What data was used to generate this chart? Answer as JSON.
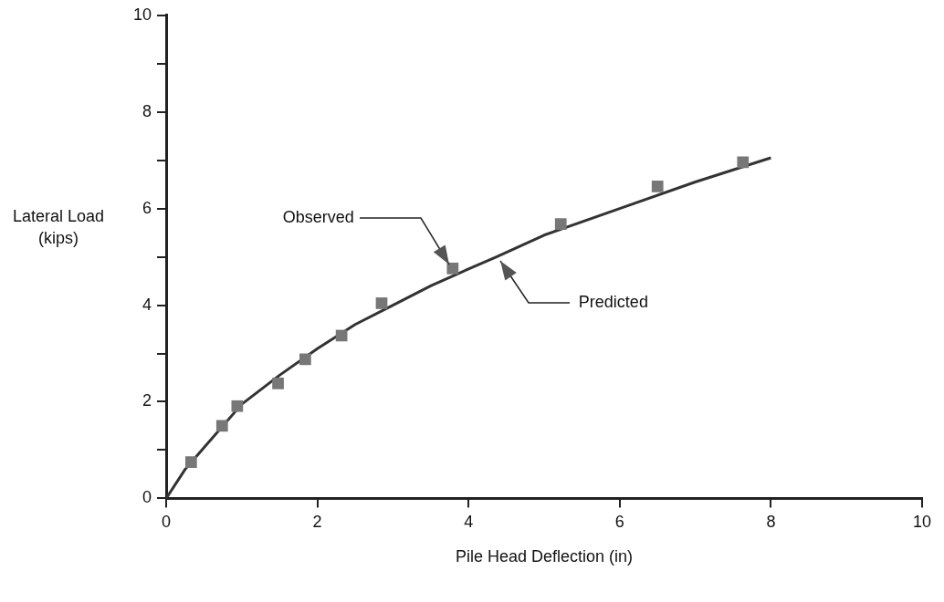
{
  "chart_data": {
    "type": "scatter",
    "xlabel": "Pile Head Deflection (in)",
    "ylabel": "Lateral Load (kips)",
    "xlim": [
      0,
      10
    ],
    "xticks": [
      0,
      2,
      4,
      6,
      8,
      10
    ],
    "ylim": [
      0,
      10
    ],
    "yticks": [
      0,
      {
        "value": 1,
        "label": null
      },
      2,
      {
        "value": 3,
        "label": null
      },
      4,
      {
        "value": 5,
        "label": null
      },
      6,
      {
        "value": 7,
        "label": null
      },
      8,
      {
        "value": 9,
        "label": null
      },
      10
    ],
    "grid": false,
    "legend": false,
    "series": [
      {
        "type": "line",
        "color": "#333333",
        "marker": "none",
        "x": [
          0,
          0.25,
          0.5,
          1,
          1.5,
          2,
          2.5,
          3,
          3.5,
          4,
          4.37,
          5,
          6,
          7,
          8
        ],
        "values": [
          0,
          0.6,
          1.05,
          1.95,
          2.55,
          3.1,
          3.6,
          4.0,
          4.4,
          4.75,
          5.0,
          5.45,
          6.0,
          6.55,
          7.05
        ]
      },
      {
        "color": "#777777",
        "marker": "square",
        "x": [
          0.33,
          0.74,
          0.94,
          1.48,
          1.84,
          2.32,
          2.85,
          3.79,
          5.22,
          6.5,
          7.63
        ],
        "values": [
          0.75,
          1.5,
          1.91,
          2.38,
          2.88,
          3.37,
          4.04,
          4.76,
          5.68,
          6.46,
          6.96
        ]
      }
    ],
    "annotations": [
      {
        "text": "Observed",
        "x": 3.79,
        "y": 4.76
      },
      {
        "text": "Predicted",
        "x": 4.37,
        "y": 5.0
      }
    ]
  }
}
